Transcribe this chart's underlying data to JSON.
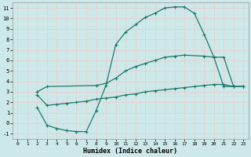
{
  "xlabel": "Humidex (Indice chaleur)",
  "bg_color": "#cce8e8",
  "grid_color": "#f0c8c8",
  "line_color": "#1a7a6e",
  "xlim": [
    -0.5,
    23.5
  ],
  "ylim": [
    -1.5,
    11.5
  ],
  "xticks": [
    0,
    1,
    2,
    3,
    4,
    5,
    6,
    7,
    8,
    9,
    10,
    11,
    12,
    13,
    14,
    15,
    16,
    17,
    18,
    19,
    20,
    21,
    22,
    23
  ],
  "yticks": [
    -1,
    0,
    1,
    2,
    3,
    4,
    5,
    6,
    7,
    8,
    9,
    10,
    11
  ],
  "curve_top_x": [
    2,
    3,
    4,
    5,
    6,
    7,
    8,
    9,
    10,
    11,
    12,
    13,
    14,
    15,
    16,
    17,
    18,
    19,
    20,
    21,
    22,
    23
  ],
  "curve_top_y": [
    1.5,
    -0.2,
    -0.5,
    -0.7,
    -0.8,
    -0.8,
    1.2,
    3.6,
    7.5,
    8.7,
    9.4,
    10.1,
    10.5,
    11.0,
    11.1,
    11.1,
    10.5,
    8.5,
    6.3,
    6.3,
    3.5,
    3.5
  ],
  "curve_mid_x": [
    2,
    3,
    8,
    9,
    10,
    11,
    12,
    13,
    14,
    15,
    16,
    17,
    19,
    20,
    21,
    22,
    23
  ],
  "curve_mid_y": [
    3.0,
    3.5,
    3.6,
    3.8,
    4.3,
    5.0,
    5.4,
    5.7,
    6.0,
    6.3,
    6.4,
    6.5,
    6.4,
    6.3,
    3.5,
    3.5,
    3.5
  ],
  "curve_low_x": [
    2,
    3,
    4,
    5,
    6,
    7,
    8,
    9,
    10,
    11,
    12,
    13,
    14,
    15,
    16,
    17,
    18,
    19,
    20,
    21,
    22,
    23
  ],
  "curve_low_y": [
    2.7,
    1.7,
    1.8,
    1.9,
    2.0,
    2.1,
    2.3,
    2.4,
    2.5,
    2.7,
    2.8,
    3.0,
    3.1,
    3.2,
    3.3,
    3.4,
    3.5,
    3.6,
    3.7,
    3.7,
    3.5,
    3.5
  ]
}
